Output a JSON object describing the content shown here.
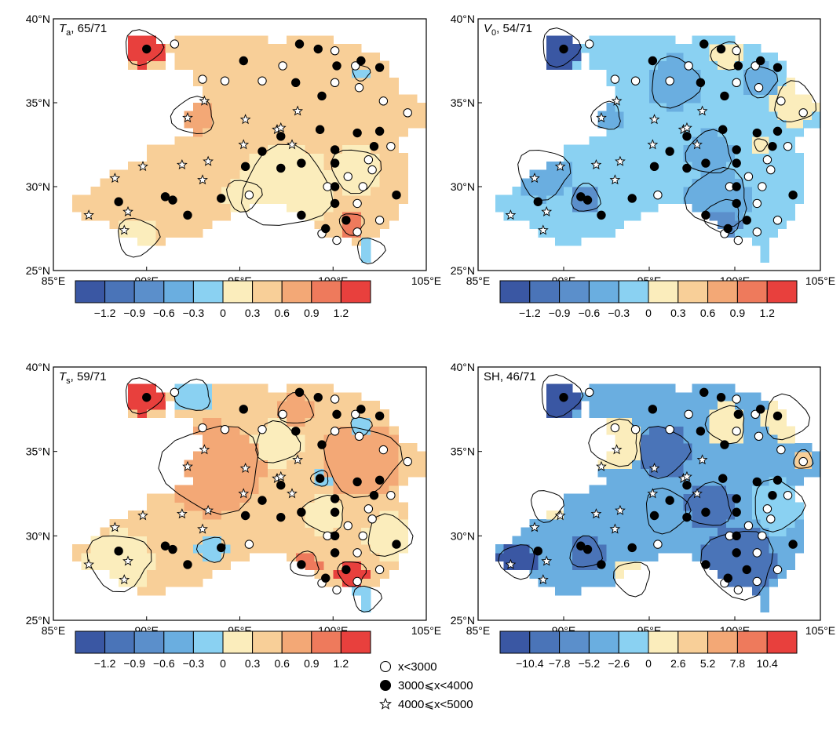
{
  "axes": {
    "lon_ticks": [
      85,
      90,
      95,
      100,
      105
    ],
    "lat_ticks": [
      25,
      30,
      35,
      40
    ],
    "lon_labels": [
      "85°E",
      "90°E",
      "95°E",
      "100°E",
      "105°E"
    ],
    "lat_labels": [
      "25°N",
      "30°N",
      "35°N",
      "40°N"
    ],
    "lon_range": [
      85,
      105
    ],
    "lat_range": [
      25,
      40
    ]
  },
  "panels": [
    {
      "id": "ta",
      "symbol": "T",
      "subscript": "a",
      "label_suffix": ", 65/71",
      "palette": "diverging",
      "colorbar_labels": [
        "−1.2",
        "−0.9",
        "−0.6",
        "−0.3",
        "0",
        "0.3",
        "0.6",
        "0.9",
        "1.2"
      ],
      "field": {
        "base_level": 6,
        "blobs": [
          {
            "lon": 89.8,
            "lat": 38.3,
            "r": 1.1,
            "level": 9
          },
          {
            "lon": 92.5,
            "lat": 34.2,
            "r": 1.2,
            "level": 7
          },
          {
            "lon": 97.5,
            "lat": 29.9,
            "r": 2.6,
            "level": 5
          },
          {
            "lon": 101.2,
            "lat": 31.0,
            "r": 1.4,
            "level": 5
          },
          {
            "lon": 95.2,
            "lat": 29.5,
            "r": 1.0,
            "level": 5
          },
          {
            "lon": 101.0,
            "lat": 27.8,
            "r": 0.7,
            "level": 8
          },
          {
            "lon": 102.0,
            "lat": 26.2,
            "r": 0.8,
            "level": 4
          },
          {
            "lon": 89.5,
            "lat": 27.0,
            "r": 1.2,
            "level": 5
          },
          {
            "lon": 101.5,
            "lat": 36.8,
            "r": 0.5,
            "level": 4
          }
        ]
      }
    },
    {
      "id": "v0",
      "symbol": "V",
      "subscript": "0",
      "label_suffix": ", 54/71",
      "palette": "diverging",
      "colorbar_labels": [
        "−1.2",
        "−0.9",
        "−0.6",
        "−0.3",
        "0",
        "0.3",
        "0.6",
        "0.9",
        "1.2"
      ],
      "field": {
        "base_level": 4,
        "blobs": [
          {
            "lon": 89.8,
            "lat": 38.3,
            "r": 1.2,
            "level": 0
          },
          {
            "lon": 96.5,
            "lat": 36.2,
            "r": 1.6,
            "level": 3
          },
          {
            "lon": 101.5,
            "lat": 36.3,
            "r": 1.0,
            "level": 3
          },
          {
            "lon": 92.5,
            "lat": 34.2,
            "r": 0.9,
            "level": 3
          },
          {
            "lon": 88.8,
            "lat": 30.8,
            "r": 1.6,
            "level": 3
          },
          {
            "lon": 91.3,
            "lat": 29.3,
            "r": 0.9,
            "level": 2
          },
          {
            "lon": 99.0,
            "lat": 29.3,
            "r": 1.9,
            "level": 3
          },
          {
            "lon": 99.3,
            "lat": 28.2,
            "r": 1.1,
            "level": 2
          },
          {
            "lon": 98.5,
            "lat": 32.0,
            "r": 1.4,
            "level": 3
          },
          {
            "lon": 103.5,
            "lat": 35.0,
            "r": 1.3,
            "level": 5
          },
          {
            "lon": 99.5,
            "lat": 37.8,
            "r": 0.9,
            "level": 5
          },
          {
            "lon": 101.5,
            "lat": 32.5,
            "r": 0.4,
            "level": 5
          }
        ]
      }
    },
    {
      "id": "ts",
      "symbol": "T",
      "subscript": "s",
      "label_suffix": ", 59/71",
      "palette": "diverging",
      "colorbar_labels": [
        "−1.2",
        "−0.9",
        "−0.6",
        "−0.3",
        "0",
        "0.3",
        "0.6",
        "0.9",
        "1.2"
      ],
      "field": {
        "base_level": 6,
        "blobs": [
          {
            "lon": 89.8,
            "lat": 38.3,
            "r": 1.1,
            "level": 9
          },
          {
            "lon": 92.5,
            "lat": 38.3,
            "r": 1.0,
            "level": 4
          },
          {
            "lon": 93.5,
            "lat": 34.0,
            "r": 2.8,
            "level": 7
          },
          {
            "lon": 101.5,
            "lat": 34.5,
            "r": 2.2,
            "level": 7
          },
          {
            "lon": 97.0,
            "lat": 35.5,
            "r": 1.3,
            "level": 5
          },
          {
            "lon": 101.5,
            "lat": 36.5,
            "r": 0.6,
            "level": 4
          },
          {
            "lon": 98.0,
            "lat": 37.5,
            "r": 1.0,
            "level": 7
          },
          {
            "lon": 88.5,
            "lat": 28.5,
            "r": 1.8,
            "level": 5
          },
          {
            "lon": 93.5,
            "lat": 29.2,
            "r": 0.8,
            "level": 4
          },
          {
            "lon": 99.5,
            "lat": 31.3,
            "r": 1.2,
            "level": 5
          },
          {
            "lon": 99.3,
            "lat": 33.4,
            "r": 0.5,
            "level": 4
          },
          {
            "lon": 98.5,
            "lat": 28.3,
            "r": 0.8,
            "level": 8
          },
          {
            "lon": 101.0,
            "lat": 27.8,
            "r": 0.8,
            "level": 9
          },
          {
            "lon": 101.8,
            "lat": 26.3,
            "r": 0.8,
            "level": 4
          },
          {
            "lon": 103.0,
            "lat": 30.0,
            "r": 1.3,
            "level": 5
          }
        ]
      }
    },
    {
      "id": "sh",
      "symbol": "SH",
      "subscript": "",
      "label_suffix": ", 46/71",
      "palette": "diverging",
      "colorbar_labels": [
        "−10.4",
        "−7.8",
        "−5.2",
        "−2.6",
        "0",
        "2.6",
        "5.2",
        "7.8",
        "10.4"
      ],
      "field": {
        "base_level": 3,
        "blobs": [
          {
            "lon": 89.8,
            "lat": 38.3,
            "r": 1.3,
            "level": 0
          },
          {
            "lon": 95.8,
            "lat": 35.0,
            "r": 1.6,
            "level": 1
          },
          {
            "lon": 98.5,
            "lat": 31.8,
            "r": 1.4,
            "level": 1
          },
          {
            "lon": 100.2,
            "lat": 28.4,
            "r": 2.2,
            "level": 1
          },
          {
            "lon": 87.3,
            "lat": 28.5,
            "r": 1.1,
            "level": 0
          },
          {
            "lon": 91.3,
            "lat": 29.0,
            "r": 1.0,
            "level": 1
          },
          {
            "lon": 93.0,
            "lat": 35.5,
            "r": 1.5,
            "level": 5
          },
          {
            "lon": 99.5,
            "lat": 36.6,
            "r": 1.2,
            "level": 5
          },
          {
            "lon": 103.0,
            "lat": 37.0,
            "r": 1.4,
            "level": 5
          },
          {
            "lon": 104.0,
            "lat": 34.5,
            "r": 0.6,
            "level": 6
          },
          {
            "lon": 94.0,
            "lat": 27.5,
            "r": 1.1,
            "level": 5
          },
          {
            "lon": 89.0,
            "lat": 31.8,
            "r": 1.0,
            "level": 5
          },
          {
            "lon": 96.0,
            "lat": 31.5,
            "r": 1.4,
            "level": 3
          },
          {
            "lon": 102.5,
            "lat": 31.8,
            "r": 1.6,
            "level": 4
          }
        ]
      }
    }
  ],
  "colors": {
    "diverging": [
      "#3a57a3",
      "#4a74b8",
      "#5b8fcb",
      "#6aaee0",
      "#8ad1f2",
      "#fbedbc",
      "#f8cf98",
      "#f3a876",
      "#ee7a5c",
      "#e8403d"
    ]
  },
  "stations": [
    {
      "lon": 91.5,
      "lat": 38.5,
      "type": "open"
    },
    {
      "lon": 93.0,
      "lat": 36.4,
      "type": "open"
    },
    {
      "lon": 94.2,
      "lat": 36.3,
      "type": "open"
    },
    {
      "lon": 96.2,
      "lat": 36.3,
      "type": "open"
    },
    {
      "lon": 97.3,
      "lat": 37.2,
      "type": "open"
    },
    {
      "lon": 100.1,
      "lat": 38.1,
      "type": "open"
    },
    {
      "lon": 101.2,
      "lat": 37.2,
      "type": "open"
    },
    {
      "lon": 100.1,
      "lat": 36.2,
      "type": "open"
    },
    {
      "lon": 101.4,
      "lat": 35.9,
      "type": "open"
    },
    {
      "lon": 102.7,
      "lat": 35.1,
      "type": "open"
    },
    {
      "lon": 104.0,
      "lat": 34.4,
      "type": "open"
    },
    {
      "lon": 103.1,
      "lat": 32.4,
      "type": "open"
    },
    {
      "lon": 101.9,
      "lat": 31.6,
      "type": "open"
    },
    {
      "lon": 102.1,
      "lat": 31.0,
      "type": "open"
    },
    {
      "lon": 99.7,
      "lat": 30.0,
      "type": "open"
    },
    {
      "lon": 100.8,
      "lat": 30.6,
      "type": "open"
    },
    {
      "lon": 101.6,
      "lat": 30.0,
      "type": "open"
    },
    {
      "lon": 101.3,
      "lat": 29.0,
      "type": "open"
    },
    {
      "lon": 102.5,
      "lat": 28.0,
      "type": "open"
    },
    {
      "lon": 101.3,
      "lat": 27.3,
      "type": "open"
    },
    {
      "lon": 100.2,
      "lat": 26.8,
      "type": "open"
    },
    {
      "lon": 99.4,
      "lat": 27.2,
      "type": "open"
    },
    {
      "lon": 95.5,
      "lat": 29.5,
      "type": "open"
    },
    {
      "lon": 90.0,
      "lat": 38.2,
      "type": "filled"
    },
    {
      "lon": 95.2,
      "lat": 37.5,
      "type": "filled"
    },
    {
      "lon": 98.2,
      "lat": 38.5,
      "type": "filled"
    },
    {
      "lon": 99.2,
      "lat": 38.2,
      "type": "filled"
    },
    {
      "lon": 101.5,
      "lat": 37.5,
      "type": "filled"
    },
    {
      "lon": 102.5,
      "lat": 37.1,
      "type": "filled"
    },
    {
      "lon": 98.0,
      "lat": 36.2,
      "type": "filled"
    },
    {
      "lon": 100.2,
      "lat": 37.2,
      "type": "filled"
    },
    {
      "lon": 99.4,
      "lat": 35.4,
      "type": "filled"
    },
    {
      "lon": 99.3,
      "lat": 33.4,
      "type": "filled"
    },
    {
      "lon": 97.2,
      "lat": 33.0,
      "type": "filled"
    },
    {
      "lon": 96.2,
      "lat": 32.1,
      "type": "filled"
    },
    {
      "lon": 95.3,
      "lat": 31.2,
      "type": "filled"
    },
    {
      "lon": 97.2,
      "lat": 31.1,
      "type": "filled"
    },
    {
      "lon": 98.3,
      "lat": 31.4,
      "type": "filled"
    },
    {
      "lon": 100.1,
      "lat": 32.2,
      "type": "filled"
    },
    {
      "lon": 100.1,
      "lat": 31.4,
      "type": "filled"
    },
    {
      "lon": 101.3,
      "lat": 33.2,
      "type": "filled"
    },
    {
      "lon": 102.5,
      "lat": 33.3,
      "type": "filled"
    },
    {
      "lon": 102.2,
      "lat": 32.4,
      "type": "filled"
    },
    {
      "lon": 103.4,
      "lat": 29.5,
      "type": "filled"
    },
    {
      "lon": 100.1,
      "lat": 30.0,
      "type": "filled"
    },
    {
      "lon": 100.1,
      "lat": 29.0,
      "type": "filled"
    },
    {
      "lon": 98.3,
      "lat": 28.3,
      "type": "filled"
    },
    {
      "lon": 99.6,
      "lat": 27.5,
      "type": "filled"
    },
    {
      "lon": 100.7,
      "lat": 28.0,
      "type": "filled"
    },
    {
      "lon": 94.0,
      "lat": 29.3,
      "type": "filled"
    },
    {
      "lon": 92.2,
      "lat": 28.3,
      "type": "filled"
    },
    {
      "lon": 91.0,
      "lat": 29.4,
      "type": "filled"
    },
    {
      "lon": 91.4,
      "lat": 29.2,
      "type": "filled"
    },
    {
      "lon": 88.5,
      "lat": 29.1,
      "type": "filled"
    },
    {
      "lon": 86.9,
      "lat": 28.3,
      "type": "star"
    },
    {
      "lon": 89.0,
      "lat": 28.5,
      "type": "star"
    },
    {
      "lon": 88.8,
      "lat": 27.4,
      "type": "star"
    },
    {
      "lon": 88.3,
      "lat": 30.5,
      "type": "star"
    },
    {
      "lon": 89.8,
      "lat": 31.2,
      "type": "star"
    },
    {
      "lon": 91.9,
      "lat": 31.3,
      "type": "star"
    },
    {
      "lon": 92.2,
      "lat": 34.1,
      "type": "star"
    },
    {
      "lon": 93.1,
      "lat": 35.1,
      "type": "star"
    },
    {
      "lon": 93.3,
      "lat": 31.5,
      "type": "star"
    },
    {
      "lon": 93.0,
      "lat": 30.4,
      "type": "star"
    },
    {
      "lon": 95.2,
      "lat": 32.5,
      "type": "star"
    },
    {
      "lon": 95.3,
      "lat": 34.0,
      "type": "star"
    },
    {
      "lon": 97.0,
      "lat": 33.4,
      "type": "star"
    },
    {
      "lon": 97.2,
      "lat": 33.5,
      "type": "star"
    },
    {
      "lon": 97.8,
      "lat": 32.5,
      "type": "star"
    },
    {
      "lon": 98.1,
      "lat": 34.5,
      "type": "star"
    }
  ],
  "legend": {
    "items": [
      {
        "type": "open",
        "label": "x<3000"
      },
      {
        "type": "filled",
        "label": "3000⩽x<4000"
      },
      {
        "type": "star",
        "label": "4000⩽x<5000"
      }
    ]
  }
}
